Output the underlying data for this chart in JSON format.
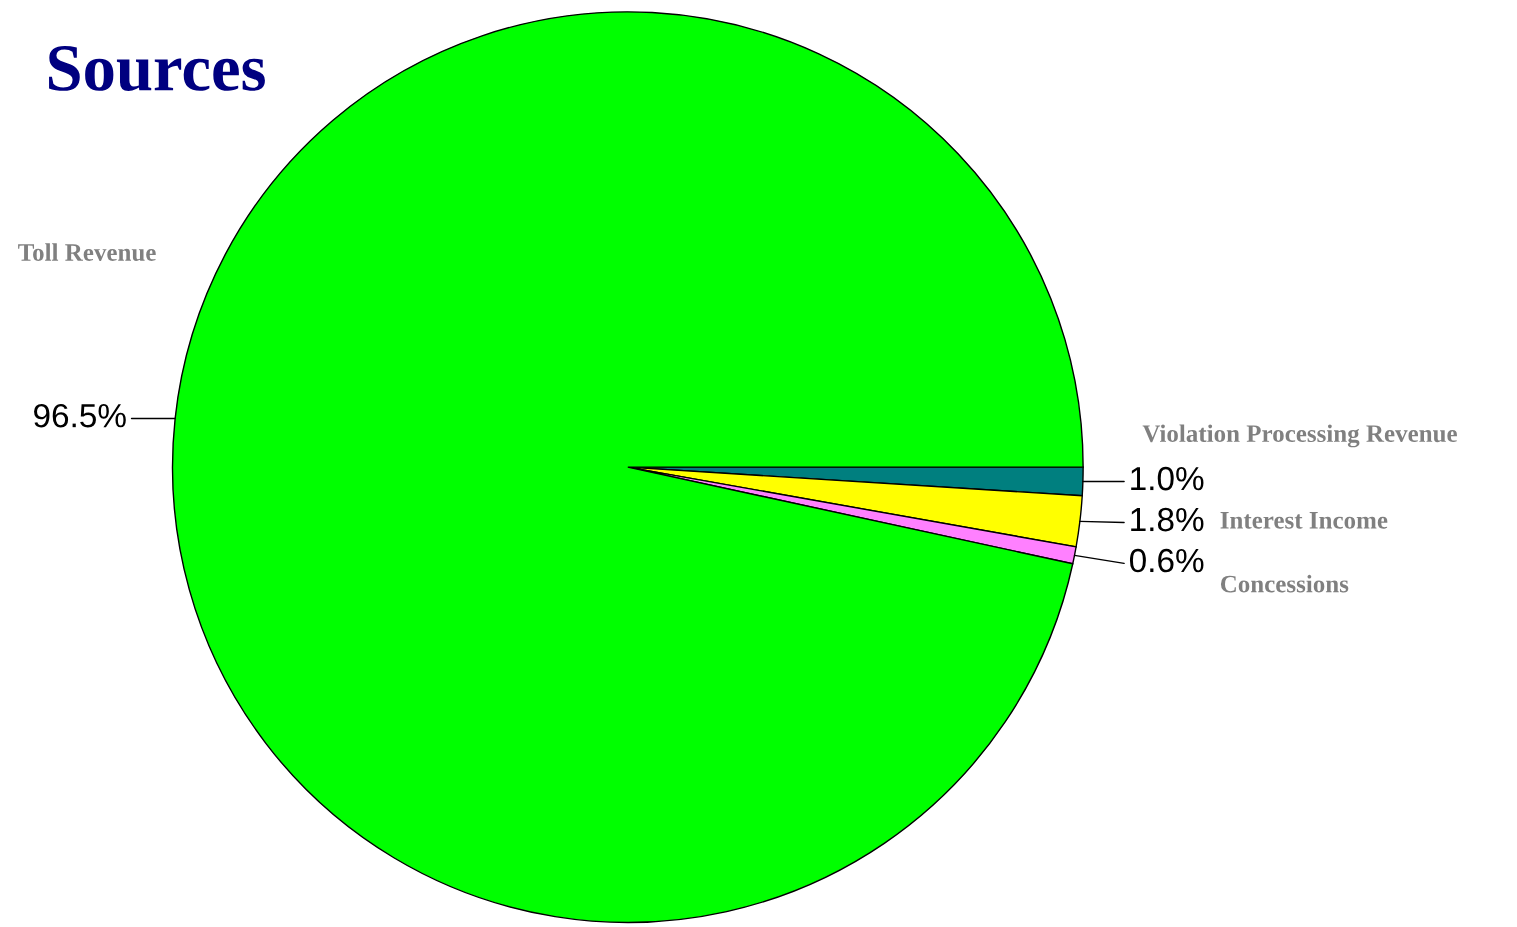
{
  "chart_data": {
    "type": "pie",
    "title": "Sources",
    "categories": [
      "Violation Processing Revenue",
      "Interest Income",
      "Concessions",
      "Toll Revenue"
    ],
    "values": [
      1.0,
      1.8,
      0.6,
      96.5
    ],
    "value_labels": [
      "1.0%",
      "1.8%",
      "0.6%",
      "96.5%"
    ],
    "colors": [
      "#007f7f",
      "#ffff00",
      "#ff80ff",
      "#00ff00"
    ],
    "legend": false
  }
}
